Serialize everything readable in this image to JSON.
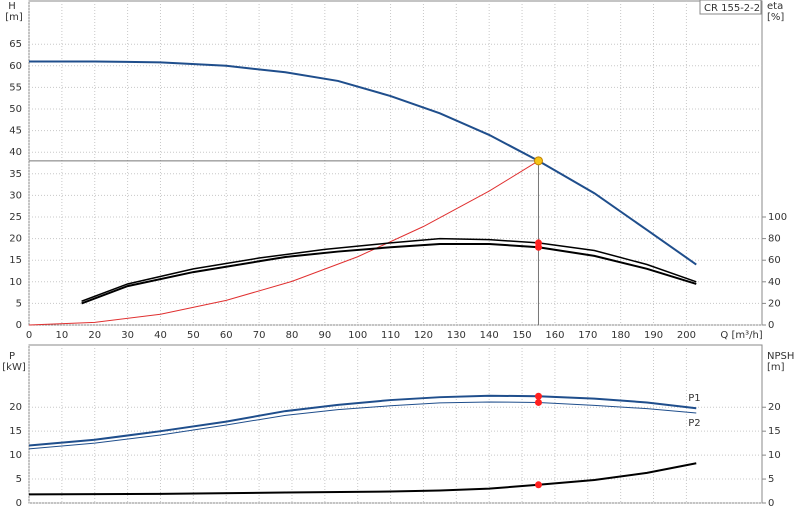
{
  "chart_data": [
    {
      "type": "line",
      "legend_box": "CR 155-2-2",
      "y_label": "H",
      "y_unit": "[m]",
      "y2_label": "eta",
      "y2_unit": "[%]",
      "x_label": "Q [m³/h]",
      "xlim": [
        0,
        223
      ],
      "xticks": [
        0,
        10,
        20,
        30,
        40,
        50,
        60,
        70,
        80,
        90,
        100,
        110,
        120,
        130,
        140,
        150,
        160,
        170,
        180,
        190,
        200
      ],
      "ylim": [
        0,
        75
      ],
      "yticks": [
        0,
        5,
        10,
        15,
        20,
        25,
        30,
        35,
        40,
        45,
        50,
        55,
        60,
        65
      ],
      "y2lim": [
        0,
        300
      ],
      "y2ticks": [
        0,
        20,
        40,
        60,
        80,
        100
      ],
      "grid": true,
      "show_xtick_labels": true,
      "operating_point": {
        "x": 155,
        "y": 38,
        "color": "#f5c518",
        "line_color": "#777777"
      },
      "series": [
        {
          "color": "#1f4e8c",
          "width": 2,
          "x": [
            0,
            20,
            40,
            60,
            78,
            94,
            110,
            125,
            140,
            155,
            172,
            188,
            203
          ],
          "values": [
            61,
            61,
            60.8,
            60,
            58.5,
            56.5,
            53,
            49,
            44,
            38,
            30.5,
            22,
            14
          ]
        },
        {
          "color": "#e03030",
          "width": 1,
          "x": [
            0,
            20,
            40,
            60,
            80,
            100,
            120,
            140,
            155
          ],
          "values": [
            0,
            0.6,
            2.5,
            5.7,
            10.1,
            15.8,
            22.8,
            31,
            38
          ]
        },
        {
          "color": "#000000",
          "width": 1.5,
          "axis": "y2",
          "x": [
            16,
            30,
            50,
            70,
            90,
            110,
            125,
            140,
            155,
            172,
            188,
            203
          ],
          "values": [
            22,
            38,
            52,
            62,
            70,
            76,
            80,
            79,
            76,
            69,
            56,
            40
          ]
        },
        {
          "color": "#000000",
          "width": 2,
          "axis": "y2",
          "x": [
            16,
            30,
            50,
            70,
            78,
            94,
            110,
            125,
            140,
            155,
            172,
            188,
            203
          ],
          "values": [
            20,
            36,
            49,
            59,
            63,
            68,
            72,
            75,
            75,
            72,
            64,
            52,
            38
          ]
        }
      ]
    },
    {
      "type": "line",
      "y_label": "P",
      "y_unit": "[kW]",
      "y2_label": "NPSH",
      "y2_unit": "[m]",
      "xlim": [
        0,
        223
      ],
      "xticks": [
        0,
        10,
        20,
        30,
        40,
        50,
        60,
        70,
        80,
        90,
        100,
        110,
        120,
        130,
        140,
        150,
        160,
        170,
        180,
        190,
        200
      ],
      "ylim": [
        0,
        33
      ],
      "yticks": [
        0,
        5,
        10,
        15,
        20
      ],
      "y2lim": [
        0,
        33
      ],
      "y2ticks": [
        0,
        5,
        10,
        15,
        20
      ],
      "grid": true,
      "show_xtick_labels": false,
      "series": [
        {
          "name": "P1",
          "color": "#1f4e8c",
          "width": 2,
          "x": [
            0,
            20,
            40,
            60,
            78,
            94,
            110,
            125,
            140,
            155,
            172,
            188,
            203
          ],
          "values": [
            12,
            13.2,
            15,
            17,
            19.2,
            20.5,
            21.5,
            22.1,
            22.4,
            22.3,
            21.8,
            21,
            19.8
          ]
        },
        {
          "name": "P2",
          "color": "#1f4e8c",
          "width": 1,
          "x": [
            0,
            20,
            40,
            60,
            78,
            94,
            110,
            125,
            140,
            155,
            172,
            188,
            203
          ],
          "values": [
            11.3,
            12.5,
            14.2,
            16.3,
            18.3,
            19.5,
            20.3,
            20.9,
            21.1,
            21,
            20.4,
            19.7,
            18.8
          ]
        },
        {
          "color": "#000000",
          "width": 2,
          "axis": "y2",
          "x": [
            0,
            40,
            78,
            110,
            125,
            140,
            155,
            172,
            188,
            203
          ],
          "values": [
            1.8,
            1.9,
            2.2,
            2.4,
            2.6,
            3,
            3.8,
            4.8,
            6.3,
            8.3
          ]
        }
      ]
    }
  ]
}
